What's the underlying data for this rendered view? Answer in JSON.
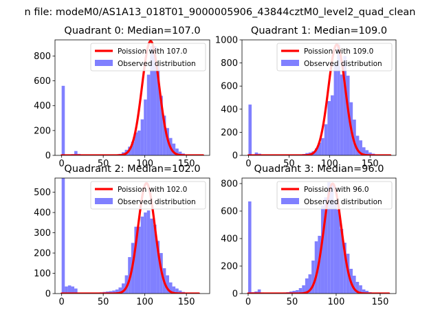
{
  "figure": {
    "suptitle": "n file: modeM0/AS1A13_018T01_9000005906_43844cztM0_level2_quad_clean"
  },
  "chart_data": [
    {
      "type": "bar",
      "title": "Quadrant 0: Median=107.0",
      "median": 107.0,
      "xlim": [
        -8,
        178
      ],
      "ylim": [
        0,
        930
      ],
      "xticks": [
        0,
        50,
        100,
        150
      ],
      "yticks": [
        0,
        200,
        400,
        600,
        800
      ],
      "bin_width": 3.8,
      "hist": {
        "name": "Observed distribution",
        "color": "#8080ff",
        "x": [
          0,
          3.8,
          7.6,
          11.4,
          15.2,
          19,
          22.8,
          26.6,
          30.4,
          34.2,
          38,
          41.8,
          45.6,
          49.4,
          53.2,
          57,
          60.8,
          64.6,
          68.4,
          72.2,
          76,
          79.8,
          83.6,
          87.4,
          91.2,
          95,
          98.8,
          102.6,
          106.4,
          110.2,
          114,
          117.8,
          121.6,
          125.4,
          129.2,
          133,
          136.8,
          140.6,
          144.4,
          148.2,
          152,
          155.8
        ],
        "values": [
          560,
          5,
          8,
          10,
          35,
          12,
          8,
          6,
          5,
          4,
          4,
          4,
          4,
          4,
          4,
          5,
          6,
          8,
          12,
          25,
          45,
          70,
          110,
          185,
          200,
          290,
          450,
          650,
          880,
          880,
          720,
          480,
          320,
          220,
          140,
          95,
          55,
          30,
          15,
          8,
          4,
          2
        ]
      },
      "curve": {
        "name": "Poission with 107.0",
        "color": "#ff0000",
        "mu": 107.0,
        "peak": 920,
        "x_range": [
          0,
          170
        ]
      },
      "legend": "top-right"
    },
    {
      "type": "bar",
      "title": "Quadrant 1: Median=109.0",
      "median": 109.0,
      "xlim": [
        -8,
        182
      ],
      "ylim": [
        0,
        1000
      ],
      "xticks": [
        0,
        50,
        100,
        150
      ],
      "yticks": [
        0,
        200,
        400,
        600,
        800,
        1000
      ],
      "bin_width": 3.9,
      "hist": {
        "name": "Observed distribution",
        "color": "#8080ff",
        "x": [
          0,
          3.9,
          7.8,
          11.7,
          15.6,
          19.5,
          23.4,
          27.3,
          31.2,
          35.1,
          39,
          42.9,
          46.8,
          50.7,
          54.6,
          58.5,
          62.4,
          66.3,
          70.2,
          74.1,
          78,
          81.9,
          85.8,
          89.7,
          93.6,
          97.5,
          101.4,
          105.3,
          109.2,
          113.1,
          117,
          120.9,
          124.8,
          128.7,
          132.6,
          136.5,
          140.4,
          144.3,
          148.2,
          152.1,
          156,
          159.9,
          163.8
        ],
        "values": [
          440,
          5,
          25,
          15,
          8,
          6,
          5,
          4,
          4,
          4,
          4,
          4,
          4,
          5,
          5,
          6,
          8,
          12,
          20,
          25,
          35,
          60,
          110,
          150,
          270,
          470,
          520,
          800,
          960,
          700,
          860,
          690,
          460,
          310,
          170,
          130,
          70,
          45,
          25,
          15,
          8,
          4,
          2
        ]
      },
      "curve": {
        "name": "Poission with 109.0",
        "color": "#ff0000",
        "mu": 109.0,
        "peak": 960,
        "x_range": [
          0,
          175
        ]
      },
      "legend": "top-right"
    },
    {
      "type": "bar",
      "title": "Quadrant 2: Median=102.0",
      "median": 102.0,
      "xlim": [
        -8,
        178
      ],
      "ylim": [
        0,
        570
      ],
      "xticks": [
        0,
        50,
        100,
        150
      ],
      "yticks": [
        0,
        100,
        200,
        300,
        400,
        500
      ],
      "bin_width": 3.8,
      "hist": {
        "name": "Observed distribution",
        "color": "#8080ff",
        "x": [
          0,
          3.8,
          7.6,
          11.4,
          15.2,
          19,
          22.8,
          26.6,
          30.4,
          34.2,
          38,
          41.8,
          45.6,
          49.4,
          53.2,
          57,
          60.8,
          64.6,
          68.4,
          72.2,
          76,
          79.8,
          83.6,
          87.4,
          91.2,
          95,
          98.8,
          102.6,
          106.4,
          110.2,
          114,
          117.8,
          121.6,
          125.4,
          129.2,
          133,
          136.8,
          140.6,
          144.4,
          148.2,
          152
        ],
        "values": [
          570,
          35,
          40,
          35,
          25,
          5,
          5,
          4,
          4,
          4,
          5,
          5,
          6,
          8,
          10,
          12,
          15,
          20,
          30,
          50,
          90,
          180,
          250,
          330,
          330,
          380,
          400,
          410,
          370,
          340,
          260,
          200,
          125,
          90,
          55,
          35,
          25,
          15,
          8,
          4,
          2
        ]
      },
      "curve": {
        "name": "Poission with 102.0",
        "color": "#ff0000",
        "mu": 102.0,
        "peak": 545,
        "x_range": [
          0,
          165
        ]
      },
      "legend": "top-right"
    },
    {
      "type": "bar",
      "title": "Quadrant 3: Median=96.0",
      "median": 96.0,
      "xlim": [
        -7,
        168
      ],
      "ylim": [
        0,
        840
      ],
      "xticks": [
        0,
        50,
        100,
        150
      ],
      "yticks": [
        0,
        200,
        400,
        600,
        800
      ],
      "bin_width": 3.6,
      "hist": {
        "name": "Observed distribution",
        "color": "#8080ff",
        "x": [
          0,
          3.6,
          7.2,
          10.8,
          14.4,
          18,
          21.6,
          25.2,
          28.8,
          32.4,
          36,
          39.6,
          43.2,
          46.8,
          50.4,
          54,
          57.6,
          61.2,
          64.8,
          68.4,
          72,
          75.6,
          79.2,
          82.8,
          86.4,
          90,
          93.6,
          97.2,
          100.8,
          104.4,
          108,
          111.6,
          115.2,
          118.8,
          122.4,
          126,
          129.6,
          133.2,
          136.8,
          140.4,
          144
        ],
        "values": [
          670,
          10,
          15,
          30,
          8,
          5,
          4,
          4,
          4,
          5,
          6,
          8,
          10,
          15,
          20,
          25,
          40,
          60,
          110,
          140,
          240,
          380,
          420,
          640,
          700,
          810,
          790,
          680,
          610,
          470,
          370,
          290,
          180,
          130,
          85,
          60,
          30,
          20,
          10,
          5,
          2
        ]
      },
      "curve": {
        "name": "Poission with 96.0",
        "color": "#ff0000",
        "mu": 96.0,
        "peak": 800,
        "x_range": [
          0,
          160
        ]
      },
      "legend": "top-right"
    }
  ]
}
